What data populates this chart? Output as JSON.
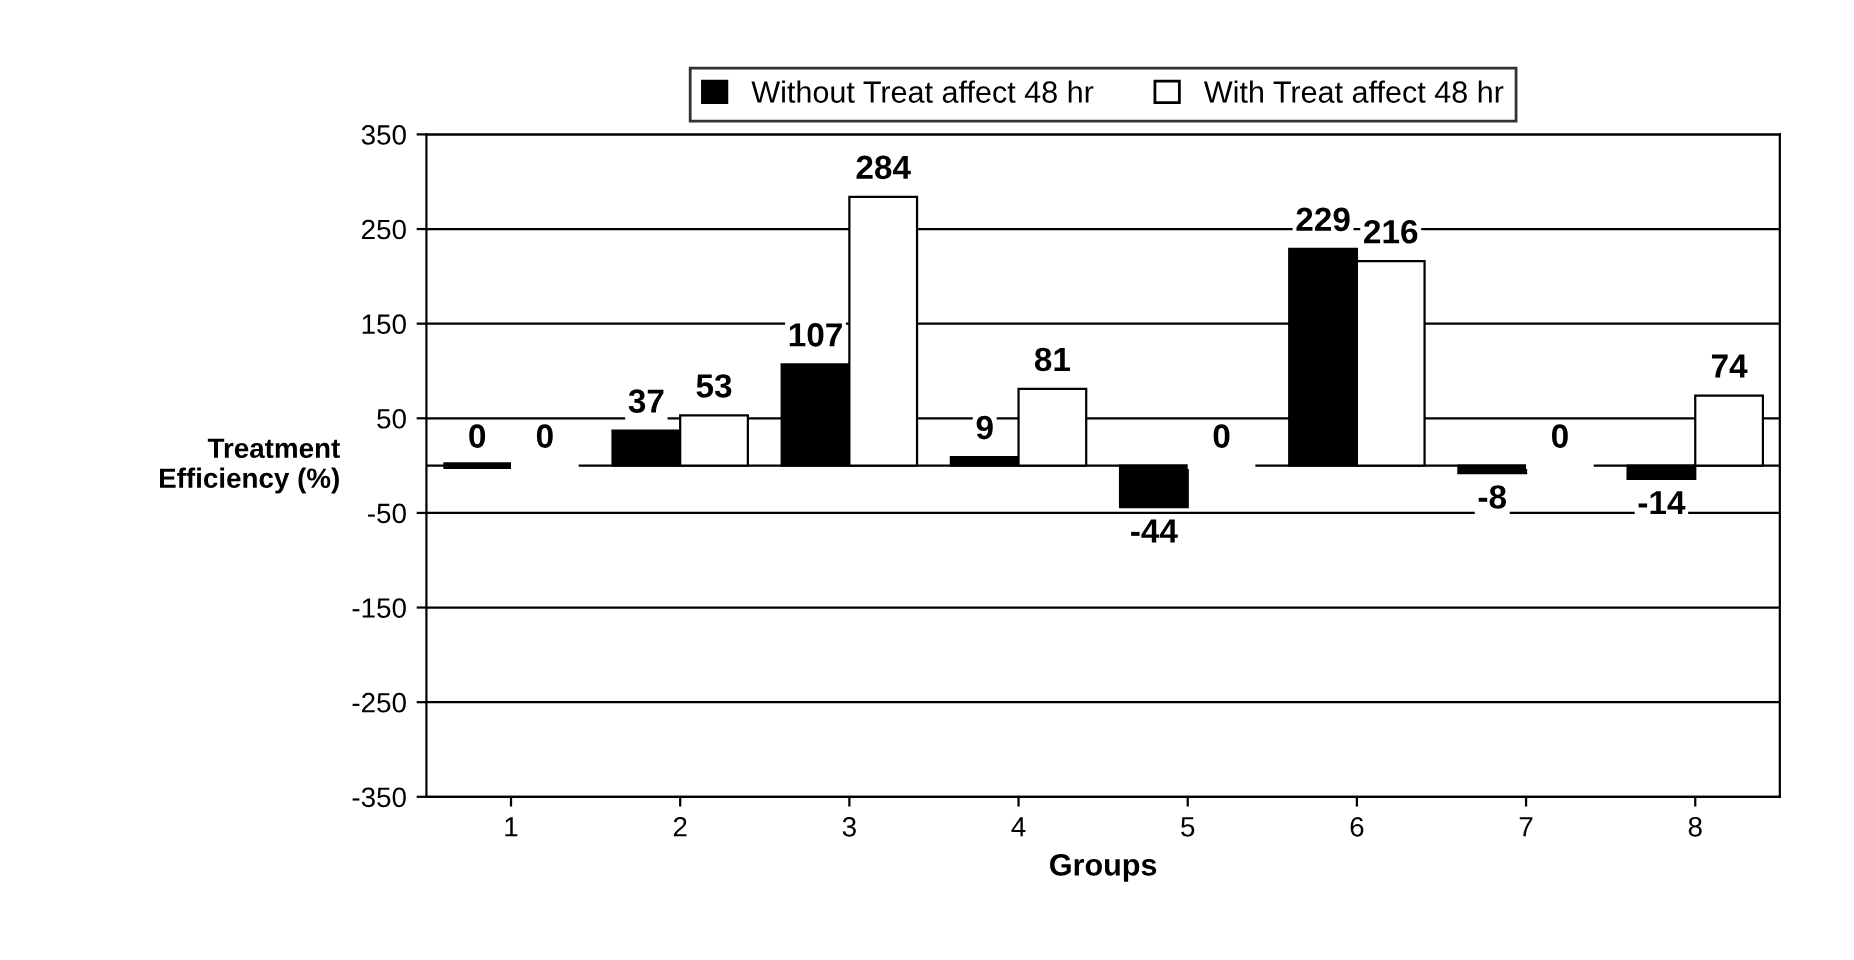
{
  "chart_data": {
    "type": "bar",
    "xlabel": "Groups",
    "ylabel": "Treatment\nEfficiency (%)",
    "categories": [
      "1",
      "2",
      "3",
      "4",
      "5",
      "6",
      "7",
      "8"
    ],
    "series": [
      {
        "name": "Without Treat affect 48 hr",
        "color": "#000000",
        "values": [
          0,
          37,
          107,
          9,
          -44,
          229,
          -8,
          -14
        ]
      },
      {
        "name": "With Treat affect 48 hr",
        "color": "#ffffff",
        "values": [
          0,
          53,
          284,
          81,
          0,
          216,
          0,
          74
        ]
      }
    ],
    "ylim": [
      -350,
      350
    ],
    "yticks": [
      -350,
      -250,
      -150,
      -50,
      50,
      150,
      250,
      350
    ],
    "grid": "y",
    "legend": "top",
    "data_labels": true
  }
}
